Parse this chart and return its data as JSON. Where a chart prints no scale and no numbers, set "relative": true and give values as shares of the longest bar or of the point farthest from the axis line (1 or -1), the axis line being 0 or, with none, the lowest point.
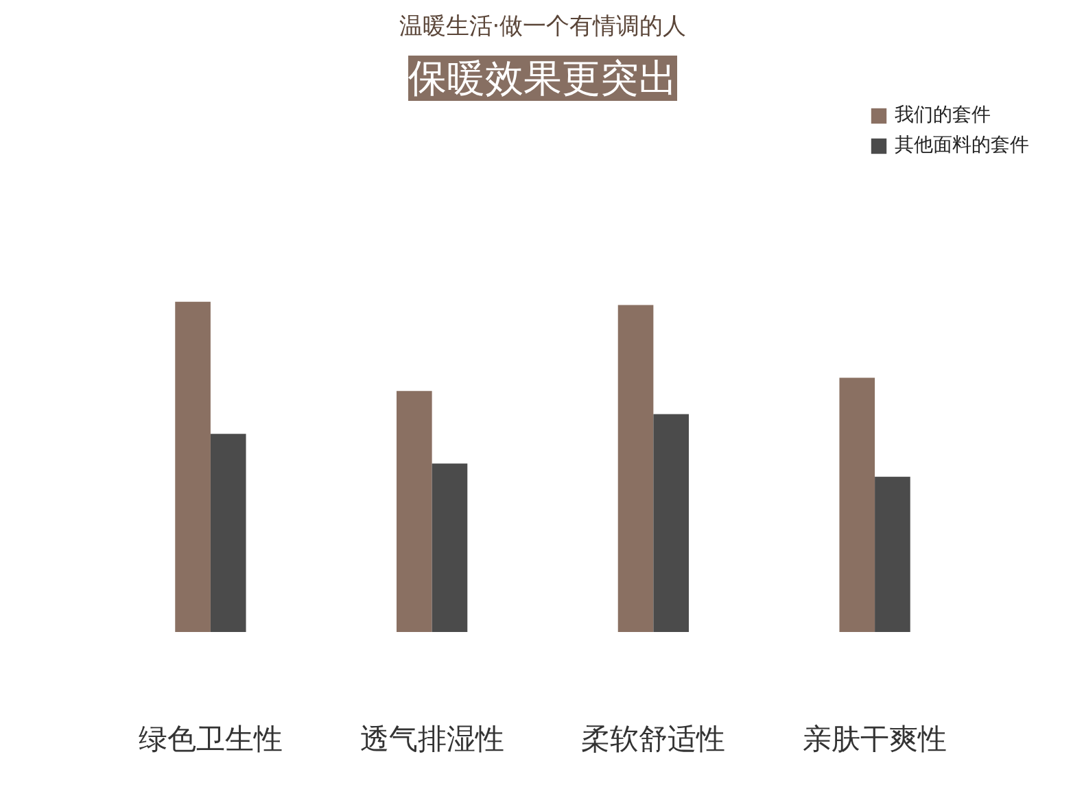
{
  "chart_data": {
    "type": "bar",
    "subtitle": "温暖生活·做一个有情调的人",
    "title": "保暖效果更突出",
    "relative": true,
    "categories": [
      "绿色卫生性",
      "透气排湿性",
      "柔软舒适性",
      "亲肤干爽性"
    ],
    "series": [
      {
        "name": "我们的套件",
        "color": "#8a7062",
        "values": [
          1,
          0.73,
          0.99,
          0.77
        ]
      },
      {
        "name": "其他面料的套件",
        "color": "#4b4b4b",
        "values": [
          0.6,
          0.51,
          0.66,
          0.47
        ]
      }
    ],
    "legend": "top right"
  }
}
